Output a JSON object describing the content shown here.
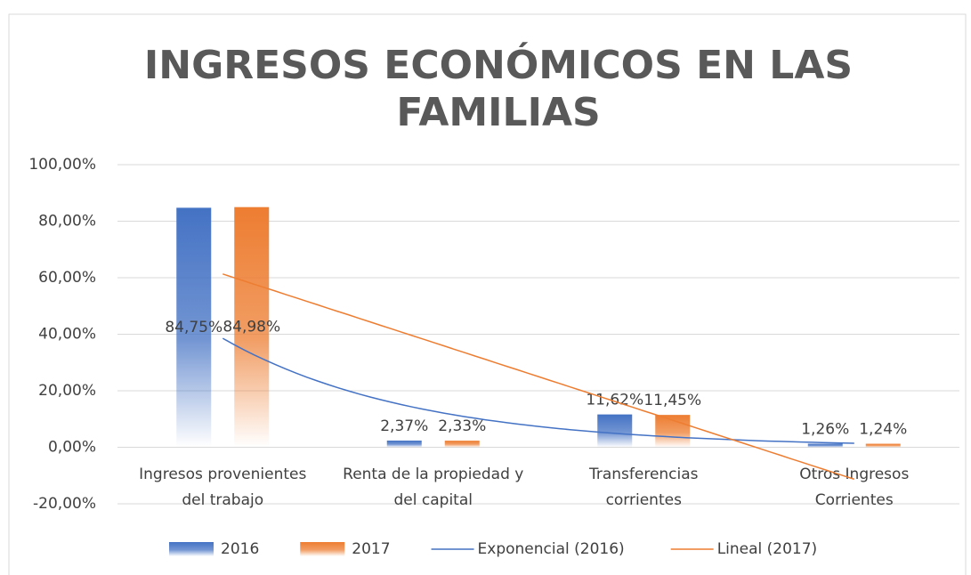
{
  "chart_data": {
    "type": "bar",
    "title": [
      "INGRESOS ECONÓMICOS EN LAS",
      "FAMILIAS"
    ],
    "categories": [
      [
        "Ingresos provenientes",
        "del trabajo"
      ],
      [
        "Renta de la propiedad y",
        "del capital"
      ],
      [
        "Transferencias",
        "corrientes"
      ],
      [
        "Otros Ingresos",
        "Corrientes"
      ]
    ],
    "series": [
      {
        "name": "2016",
        "color": "#4472c4",
        "values": [
          84.75,
          2.37,
          11.62,
          1.26
        ],
        "value_labels": [
          "84,75%",
          "2,37%",
          "11,62%",
          "1,26%"
        ]
      },
      {
        "name": "2017",
        "color": "#ed7d31",
        "values": [
          84.98,
          2.33,
          11.45,
          1.24
        ],
        "value_labels": [
          "84,98%",
          "2,33%",
          "11,45%",
          "1,24%"
        ]
      }
    ],
    "trendlines": [
      {
        "name": "Exponencial (2016)",
        "kind": "exponential",
        "series": 0,
        "color": "#4472c4"
      },
      {
        "name": "Lineal (2017)",
        "kind": "linear",
        "series": 1,
        "color": "#ed7d31"
      }
    ],
    "ylim": [
      -20,
      100
    ],
    "yticks": [
      {
        "value": -20,
        "label": "-20,00%"
      },
      {
        "value": 0,
        "label": "0,00%"
      },
      {
        "value": 20,
        "label": "20,00%"
      },
      {
        "value": 40,
        "label": "40,00%"
      },
      {
        "value": 60,
        "label": "60,00%"
      },
      {
        "value": 80,
        "label": "80,00%"
      },
      {
        "value": 100,
        "label": "100,00%"
      }
    ],
    "grid": true,
    "legend": "bottom"
  }
}
